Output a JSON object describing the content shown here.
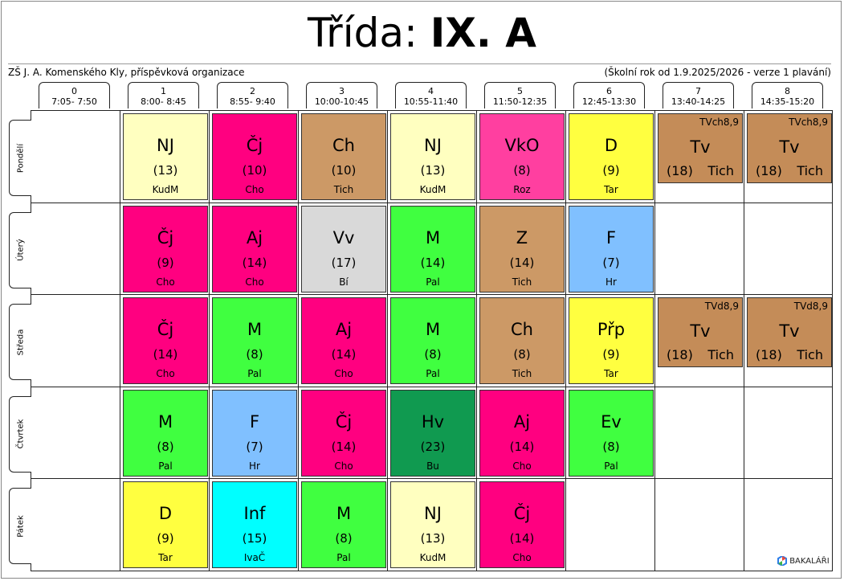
{
  "title": {
    "prefix": "Třída: ",
    "class": "IX. A"
  },
  "school": "ZŠ J. A. Komenského Kly, příspěvková organizace",
  "version": "(Školní rok od 1.9.2025/2026 - verze 1 plavání)",
  "periods": [
    {
      "num": "0",
      "time": "7:05- 7:50"
    },
    {
      "num": "1",
      "time": "8:00- 8:45"
    },
    {
      "num": "2",
      "time": "8:55- 9:40"
    },
    {
      "num": "3",
      "time": "10:00-10:45"
    },
    {
      "num": "4",
      "time": "10:55-11:40"
    },
    {
      "num": "5",
      "time": "11:50-12:35"
    },
    {
      "num": "6",
      "time": "12:45-13:30"
    },
    {
      "num": "7",
      "time": "13:40-14:25"
    },
    {
      "num": "8",
      "time": "14:35-15:20"
    }
  ],
  "days": [
    "Pondělí",
    "Úterý",
    "Středa",
    "Čtvrtek",
    "Pátek"
  ],
  "colors": {
    "NJ": "#ffffc0",
    "Čj": "#ff0080",
    "Ch": "#cc9966",
    "VkO": "#ff3fa0",
    "D": "#ffff40",
    "Tv": "#c48c58",
    "Aj": "#ff0080",
    "Vv": "#d9d9d9",
    "M": "#40ff40",
    "Z": "#cc9966",
    "F": "#80c0ff",
    "Přp": "#ffff40",
    "Hv": "#109a50",
    "Ev": "#40ff40",
    "Inf": "#00ffff"
  },
  "lessons": [
    {
      "day": 0,
      "period": 1,
      "subject": "NJ",
      "room": "(13)",
      "teacher": "KudM"
    },
    {
      "day": 0,
      "period": 2,
      "subject": "Čj",
      "room": "(10)",
      "teacher": "Cho"
    },
    {
      "day": 0,
      "period": 3,
      "subject": "Ch",
      "room": "(10)",
      "teacher": "Tich"
    },
    {
      "day": 0,
      "period": 4,
      "subject": "NJ",
      "room": "(13)",
      "teacher": "KudM"
    },
    {
      "day": 0,
      "period": 5,
      "subject": "VkO",
      "room": "(8)",
      "teacher": "Roz"
    },
    {
      "day": 0,
      "period": 6,
      "subject": "D",
      "room": "(9)",
      "teacher": "Tar"
    },
    {
      "day": 0,
      "period": 7,
      "subject": "Tv",
      "room": "(18)",
      "teacher": "Tich",
      "group": "TVch8,9"
    },
    {
      "day": 0,
      "period": 8,
      "subject": "Tv",
      "room": "(18)",
      "teacher": "Tich",
      "group": "TVch8,9"
    },
    {
      "day": 1,
      "period": 1,
      "subject": "Čj",
      "room": "(9)",
      "teacher": "Cho"
    },
    {
      "day": 1,
      "period": 2,
      "subject": "Aj",
      "room": "(14)",
      "teacher": "Cho"
    },
    {
      "day": 1,
      "period": 3,
      "subject": "Vv",
      "room": "(17)",
      "teacher": "Bí"
    },
    {
      "day": 1,
      "period": 4,
      "subject": "M",
      "room": "(14)",
      "teacher": "Pal"
    },
    {
      "day": 1,
      "period": 5,
      "subject": "Z",
      "room": "(14)",
      "teacher": "Tich"
    },
    {
      "day": 1,
      "period": 6,
      "subject": "F",
      "room": "(7)",
      "teacher": "Hr"
    },
    {
      "day": 2,
      "period": 1,
      "subject": "Čj",
      "room": "(14)",
      "teacher": "Cho"
    },
    {
      "day": 2,
      "period": 2,
      "subject": "M",
      "room": "(8)",
      "teacher": "Pal"
    },
    {
      "day": 2,
      "period": 3,
      "subject": "Aj",
      "room": "(14)",
      "teacher": "Cho"
    },
    {
      "day": 2,
      "period": 4,
      "subject": "M",
      "room": "(8)",
      "teacher": "Pal"
    },
    {
      "day": 2,
      "period": 5,
      "subject": "Ch",
      "room": "(8)",
      "teacher": "Tich"
    },
    {
      "day": 2,
      "period": 6,
      "subject": "Přp",
      "room": "(9)",
      "teacher": "Tar"
    },
    {
      "day": 2,
      "period": 7,
      "subject": "Tv",
      "room": "(18)",
      "teacher": "Tich",
      "group": "TVd8,9"
    },
    {
      "day": 2,
      "period": 8,
      "subject": "Tv",
      "room": "(18)",
      "teacher": "Tich",
      "group": "TVd8,9"
    },
    {
      "day": 3,
      "period": 1,
      "subject": "M",
      "room": "(8)",
      "teacher": "Pal"
    },
    {
      "day": 3,
      "period": 2,
      "subject": "F",
      "room": "(7)",
      "teacher": "Hr"
    },
    {
      "day": 3,
      "period": 3,
      "subject": "Čj",
      "room": "(14)",
      "teacher": "Cho"
    },
    {
      "day": 3,
      "period": 4,
      "subject": "Hv",
      "room": "(23)",
      "teacher": "Bu"
    },
    {
      "day": 3,
      "period": 5,
      "subject": "Aj",
      "room": "(14)",
      "teacher": "Cho"
    },
    {
      "day": 3,
      "period": 6,
      "subject": "Ev",
      "room": "(8)",
      "teacher": "Pal"
    },
    {
      "day": 4,
      "period": 1,
      "subject": "D",
      "room": "(9)",
      "teacher": "Tar"
    },
    {
      "day": 4,
      "period": 2,
      "subject": "Inf",
      "room": "(15)",
      "teacher": "IvaČ"
    },
    {
      "day": 4,
      "period": 3,
      "subject": "M",
      "room": "(8)",
      "teacher": "Pal"
    },
    {
      "day": 4,
      "period": 4,
      "subject": "NJ",
      "room": "(13)",
      "teacher": "KudM"
    },
    {
      "day": 4,
      "period": 5,
      "subject": "Čj",
      "room": "(14)",
      "teacher": "Cho"
    }
  ],
  "logo": "BAKALÁŘI"
}
